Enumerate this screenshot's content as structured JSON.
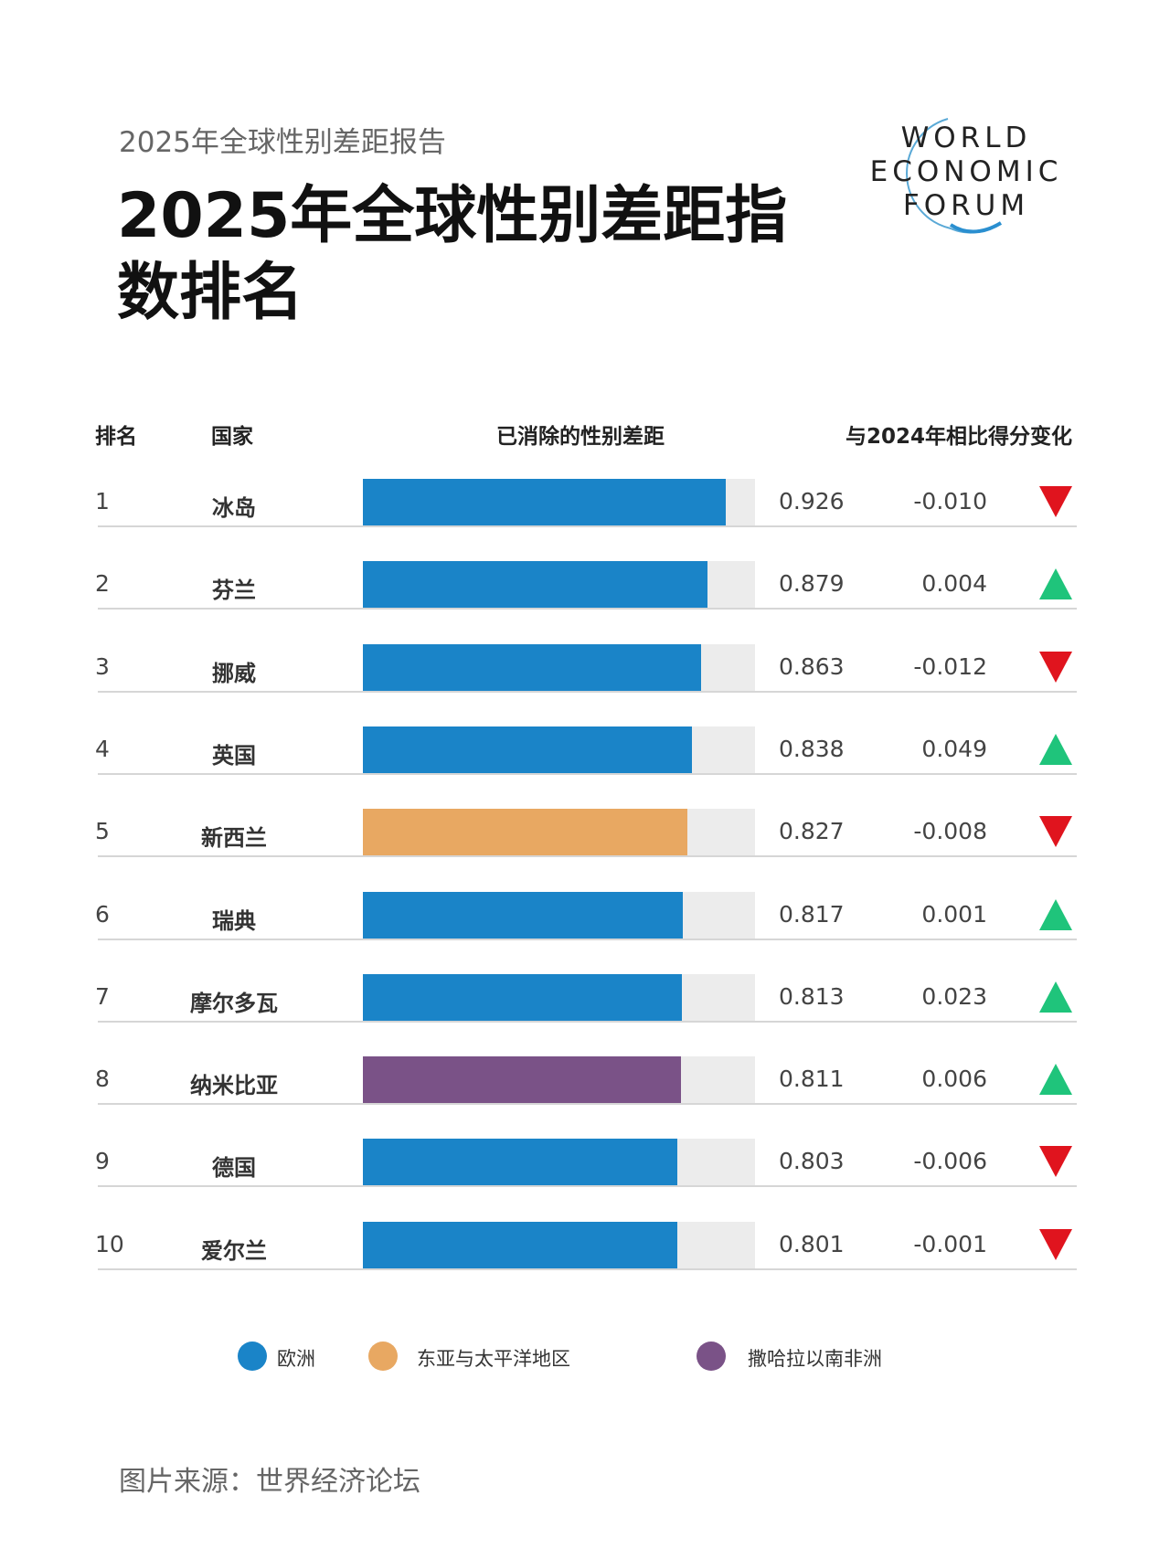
{
  "header": {
    "subtitle": "2025年全球性别差距报告",
    "title": "2025年全球性别差距指数排名",
    "logo_text": [
      "WORLD",
      "ECONOMIC",
      "FORUM"
    ]
  },
  "chart_data": {
    "type": "bar",
    "title": "2025年全球性别差距指数排名",
    "columns": [
      "排名",
      "国家",
      "已消除的性别差距",
      "与2024年相比得分变化"
    ],
    "xlim": [
      0,
      1
    ],
    "rows": [
      {
        "rank": "1",
        "country": "冰岛",
        "value": 0.926,
        "value_label": "0.926",
        "change": "-0.010",
        "direction": "down",
        "region": "欧洲"
      },
      {
        "rank": "2",
        "country": "芬兰",
        "value": 0.879,
        "value_label": "0.879",
        "change": "0.004",
        "direction": "up",
        "region": "欧洲"
      },
      {
        "rank": "3",
        "country": "挪威",
        "value": 0.863,
        "value_label": "0.863",
        "change": "-0.012",
        "direction": "down",
        "region": "欧洲"
      },
      {
        "rank": "4",
        "country": "英国",
        "value": 0.838,
        "value_label": "0.838",
        "change": "0.049",
        "direction": "up",
        "region": "欧洲"
      },
      {
        "rank": "5",
        "country": "新西兰",
        "value": 0.827,
        "value_label": "0.827",
        "change": "-0.008",
        "direction": "down",
        "region": "东亚与太平洋地区"
      },
      {
        "rank": "6",
        "country": "瑞典",
        "value": 0.817,
        "value_label": "0.817",
        "change": "0.001",
        "direction": "up",
        "region": "欧洲"
      },
      {
        "rank": "7",
        "country": "摩尔多瓦",
        "value": 0.813,
        "value_label": "0.813",
        "change": "0.023",
        "direction": "up",
        "region": "欧洲"
      },
      {
        "rank": "8",
        "country": "纳米比亚",
        "value": 0.811,
        "value_label": "0.811",
        "change": "0.006",
        "direction": "up",
        "region": "撒哈拉以南非洲"
      },
      {
        "rank": "9",
        "country": "德国",
        "value": 0.803,
        "value_label": "0.803",
        "change": "-0.006",
        "direction": "down",
        "region": "欧洲"
      },
      {
        "rank": "10",
        "country": "爱尔兰",
        "value": 0.801,
        "value_label": "0.801",
        "change": "-0.001",
        "direction": "up_false_down",
        "region": "欧洲"
      }
    ],
    "legend": [
      {
        "label": "欧洲",
        "color": "#1a84c8"
      },
      {
        "label": "东亚与太平洋地区",
        "color": "#e8a862"
      },
      {
        "label": "撒哈拉以南非洲",
        "color": "#7a5287"
      }
    ],
    "legend_position": "bottom"
  },
  "colors": {
    "track": "#ececec",
    "up": "#1fc47b",
    "down": "#e0141e"
  },
  "footer": "图片来源：世界经济论坛"
}
